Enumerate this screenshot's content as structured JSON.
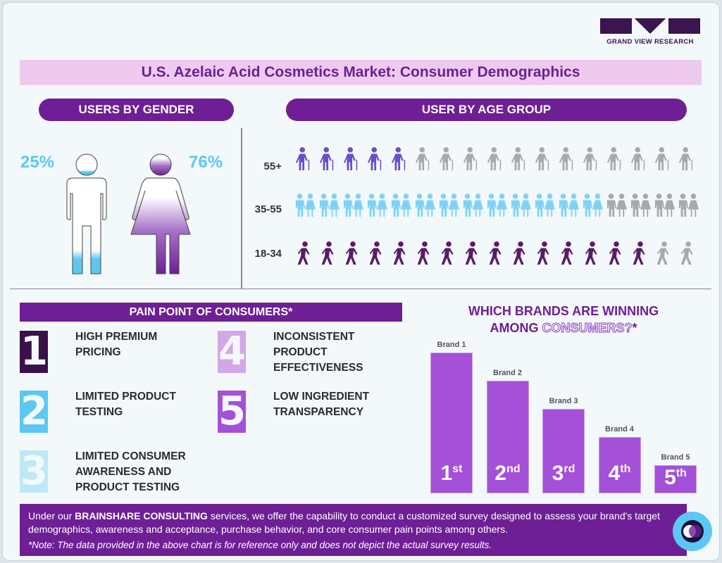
{
  "logo": {
    "text": "GRAND VIEW RESEARCH"
  },
  "title": "U.S. Azelaic Acid Cosmetics Market: Consumer Demographics",
  "gender": {
    "heading": "USERS BY GENDER",
    "male_pct": "25%",
    "female_pct": "76%",
    "male_fill": 0.25,
    "female_fill": 0.76,
    "colors": {
      "male": "#5bc8f3",
      "female": "#6e1f95"
    }
  },
  "age": {
    "heading": "USER BY AGE GROUP",
    "icons_per_row": 17,
    "rows": [
      {
        "label": "55+",
        "icon": "elderly-person-icon",
        "filled": 5,
        "color": "#6a4fc4"
      },
      {
        "label": "35-55",
        "icon": "couple-icon",
        "filled": 13,
        "color": "#7fd2f5"
      },
      {
        "label": "18-34",
        "icon": "walking-person-icon",
        "filled": 15,
        "color": "#5a1a68"
      }
    ]
  },
  "pain": {
    "heading": "PAIN POINT OF CONSUMERS*",
    "items": [
      {
        "num": "1",
        "text": "HIGH PREMIUM PRICING",
        "color": "#3a1148"
      },
      {
        "num": "2",
        "text": "LIMITED PRODUCT TESTING",
        "color": "#5bc8f3"
      },
      {
        "num": "3",
        "text": "LIMITED CONSUMER AWARENESS AND PRODUCT TESTING",
        "color": "#bde8f8"
      },
      {
        "num": "4",
        "text": "INCONSISTENT PRODUCT EFFECTIVENESS",
        "color": "#d3a6ea"
      },
      {
        "num": "5",
        "text": "LOW INGREDIENT TRANSPARENCY",
        "color": "#a550d8"
      }
    ]
  },
  "brands": {
    "heading_line1": "WHICH BRANDS ARE WINNING",
    "heading_line2a": "AMONG ",
    "heading_line2b": "CONSUMERS?",
    "heading_line2c": "*"
  },
  "chart_data": {
    "type": "bar",
    "categories": [
      "Brand 1",
      "Brand 2",
      "Brand 3",
      "Brand 4",
      "Brand 5"
    ],
    "ranks": [
      "1",
      "2",
      "3",
      "4",
      "5"
    ],
    "rank_suffixes": [
      "st",
      "nd",
      "rd",
      "th",
      "th"
    ],
    "bar_color": "#a550d8"
  },
  "footer": {
    "pre": "Under our ",
    "highlight": "BRAINSHARE CONSULTING",
    "post": " services, we offer the capability to conduct a customized survey designed to assess your brand's target demographics, awareness and acceptance, purchase behavior, and core consumer pain points among others.",
    "note": "*Note: The data provided in the above chart is for reference only and does not depict the actual survey results."
  }
}
